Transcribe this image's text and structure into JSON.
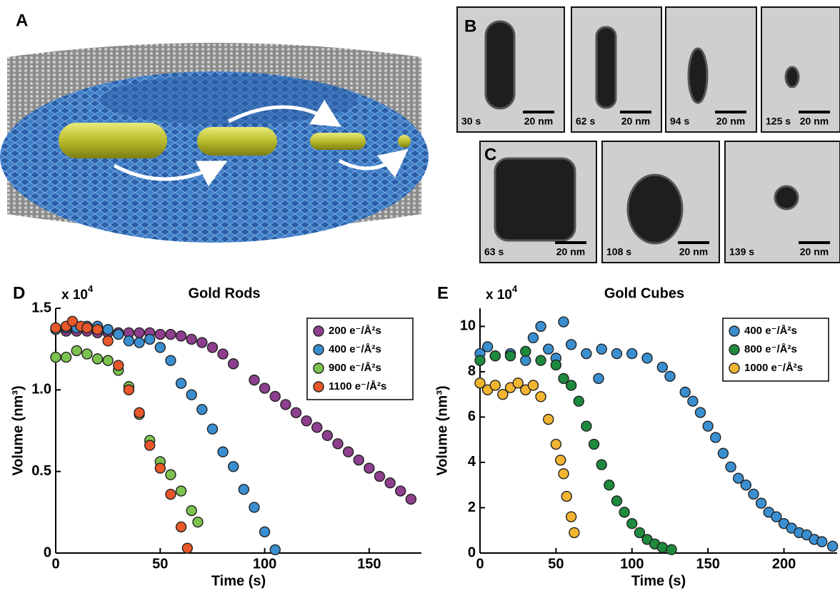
{
  "figure": {
    "A": {
      "label": "A"
    },
    "B": {
      "label": "B",
      "frames": [
        {
          "time": "30 s",
          "scale": "20 nm"
        },
        {
          "time": "62 s",
          "scale": "20 nm"
        },
        {
          "time": "94 s",
          "scale": "20 nm"
        },
        {
          "time": "125 s",
          "scale": "20 nm"
        }
      ]
    },
    "C": {
      "label": "C",
      "frames": [
        {
          "time": "63 s",
          "scale": "20 nm"
        },
        {
          "time": "108 s",
          "scale": "20 nm"
        },
        {
          "time": "139 s",
          "scale": "20 nm"
        }
      ]
    }
  },
  "chart_data": [
    {
      "type": "scatter",
      "panel": "D",
      "title": "Gold Rods",
      "y_multiplier": {
        "base": "x 10",
        "exponent": "4"
      },
      "xlabel": "Time (s)",
      "ylabel": "Volume (nm³)",
      "xlim": [
        0,
        175
      ],
      "xticks": [
        0,
        50,
        100,
        150
      ],
      "ylim": [
        0,
        1.5
      ],
      "yticks": [
        0,
        0.5,
        {
          "value": 1,
          "label": "1.0"
        },
        1.5
      ],
      "legend": "top-right",
      "series": [
        {
          "name": "200 e⁻/Å²s",
          "color": "#8e3f8e",
          "x": [
            5,
            10,
            15,
            20,
            25,
            30,
            35,
            40,
            45,
            50,
            55,
            60,
            65,
            70,
            75,
            80,
            85,
            95,
            100,
            105,
            110,
            115,
            120,
            125,
            130,
            135,
            140,
            145,
            150,
            155,
            160,
            165,
            170
          ],
          "values": [
            1.36,
            1.36,
            1.36,
            1.35,
            1.35,
            1.35,
            1.35,
            1.35,
            1.35,
            1.34,
            1.34,
            1.33,
            1.31,
            1.29,
            1.26,
            1.22,
            1.16,
            1.06,
            1.01,
            0.96,
            0.91,
            0.86,
            0.81,
            0.77,
            0.72,
            0.67,
            0.62,
            0.57,
            0.52,
            0.47,
            0.43,
            0.38,
            0.33
          ]
        },
        {
          "name": "400 e⁻/Å²s",
          "color": "#3a8fd0",
          "x": [
            0,
            5,
            10,
            15,
            20,
            25,
            30,
            35,
            40,
            45,
            50,
            55,
            60,
            65,
            70,
            75,
            80,
            85,
            90,
            95,
            100,
            105
          ],
          "values": [
            1.37,
            1.38,
            1.38,
            1.39,
            1.39,
            1.37,
            1.34,
            1.3,
            1.29,
            1.31,
            1.26,
            1.18,
            1.04,
            0.97,
            0.88,
            0.76,
            0.62,
            0.53,
            0.39,
            0.28,
            0.13,
            0.02
          ]
        },
        {
          "name": "900 e⁻/Å²s",
          "color": "#7cc24f",
          "x": [
            0,
            5,
            10,
            15,
            20,
            25,
            30,
            35,
            40,
            45,
            50,
            55,
            60,
            65,
            68
          ],
          "values": [
            1.2,
            1.2,
            1.24,
            1.22,
            1.19,
            1.18,
            1.12,
            1.02,
            0.85,
            0.69,
            0.56,
            0.48,
            0.38,
            0.26,
            0.19
          ]
        },
        {
          "name": "1100 e⁻/Å²s",
          "color": "#e8582a",
          "x": [
            0,
            5,
            8,
            12,
            15,
            20,
            25,
            30,
            35,
            40,
            45,
            50,
            55,
            60,
            63
          ],
          "values": [
            1.38,
            1.39,
            1.42,
            1.39,
            1.38,
            1.37,
            1.3,
            1.15,
            1.0,
            0.86,
            0.66,
            0.52,
            0.36,
            0.16,
            0.03
          ]
        }
      ]
    },
    {
      "type": "scatter",
      "panel": "E",
      "title": "Gold Cubes",
      "y_multiplier": {
        "base": "x 10",
        "exponent": "4"
      },
      "xlabel": "Time (s)",
      "ylabel": "Volume (nm³)",
      "xlim": [
        0,
        235
      ],
      "xticks": [
        0,
        50,
        100,
        150,
        200
      ],
      "ylim": [
        0,
        10.8
      ],
      "yticks": [
        0,
        2,
        4,
        6,
        8,
        10
      ],
      "legend": "top-right",
      "series": [
        {
          "name": "400 e⁻/Å²s",
          "color": "#3a8fd0",
          "x": [
            0,
            5,
            10,
            20,
            30,
            35,
            40,
            45,
            50,
            55,
            60,
            70,
            78,
            80,
            90,
            100,
            110,
            120,
            125,
            135,
            140,
            145,
            150,
            155,
            160,
            165,
            170,
            175,
            180,
            185,
            190,
            195,
            200,
            205,
            210,
            215,
            220,
            225,
            232
          ],
          "values": [
            8.8,
            9.1,
            8.7,
            8.8,
            8.5,
            9.5,
            10,
            9.0,
            8.6,
            10.2,
            9.2,
            8.8,
            7.7,
            9.0,
            8.8,
            8.8,
            8.6,
            8.2,
            7.8,
            7.1,
            6.7,
            6.2,
            5.6,
            5.1,
            4.4,
            3.8,
            3.3,
            3.0,
            2.6,
            2.2,
            1.8,
            1.6,
            1.3,
            1.1,
            0.9,
            0.8,
            0.6,
            0.5,
            0.3
          ]
        },
        {
          "name": "800 e⁻/Å²s",
          "color": "#1e8a3e",
          "x": [
            0,
            10,
            20,
            30,
            40,
            50,
            55,
            60,
            65,
            70,
            75,
            80,
            85,
            90,
            95,
            100,
            105,
            110,
            115,
            120,
            126
          ],
          "values": [
            8.5,
            8.7,
            8.7,
            8.9,
            8.5,
            8.3,
            7.7,
            7.4,
            6.7,
            5.6,
            4.8,
            3.9,
            3.0,
            2.3,
            1.8,
            1.3,
            0.9,
            0.6,
            0.4,
            0.25,
            0.15
          ]
        },
        {
          "name": "1000 e⁻/Å²s",
          "color": "#f2b531",
          "x": [
            0,
            5,
            10,
            15,
            20,
            25,
            30,
            35,
            40,
            45,
            50,
            53,
            55,
            57,
            60,
            62
          ],
          "values": [
            7.5,
            7.2,
            7.4,
            7.0,
            7.3,
            7.5,
            7.2,
            7.4,
            6.9,
            5.9,
            4.8,
            4.1,
            3.5,
            2.5,
            1.6,
            0.9
          ]
        }
      ]
    }
  ]
}
